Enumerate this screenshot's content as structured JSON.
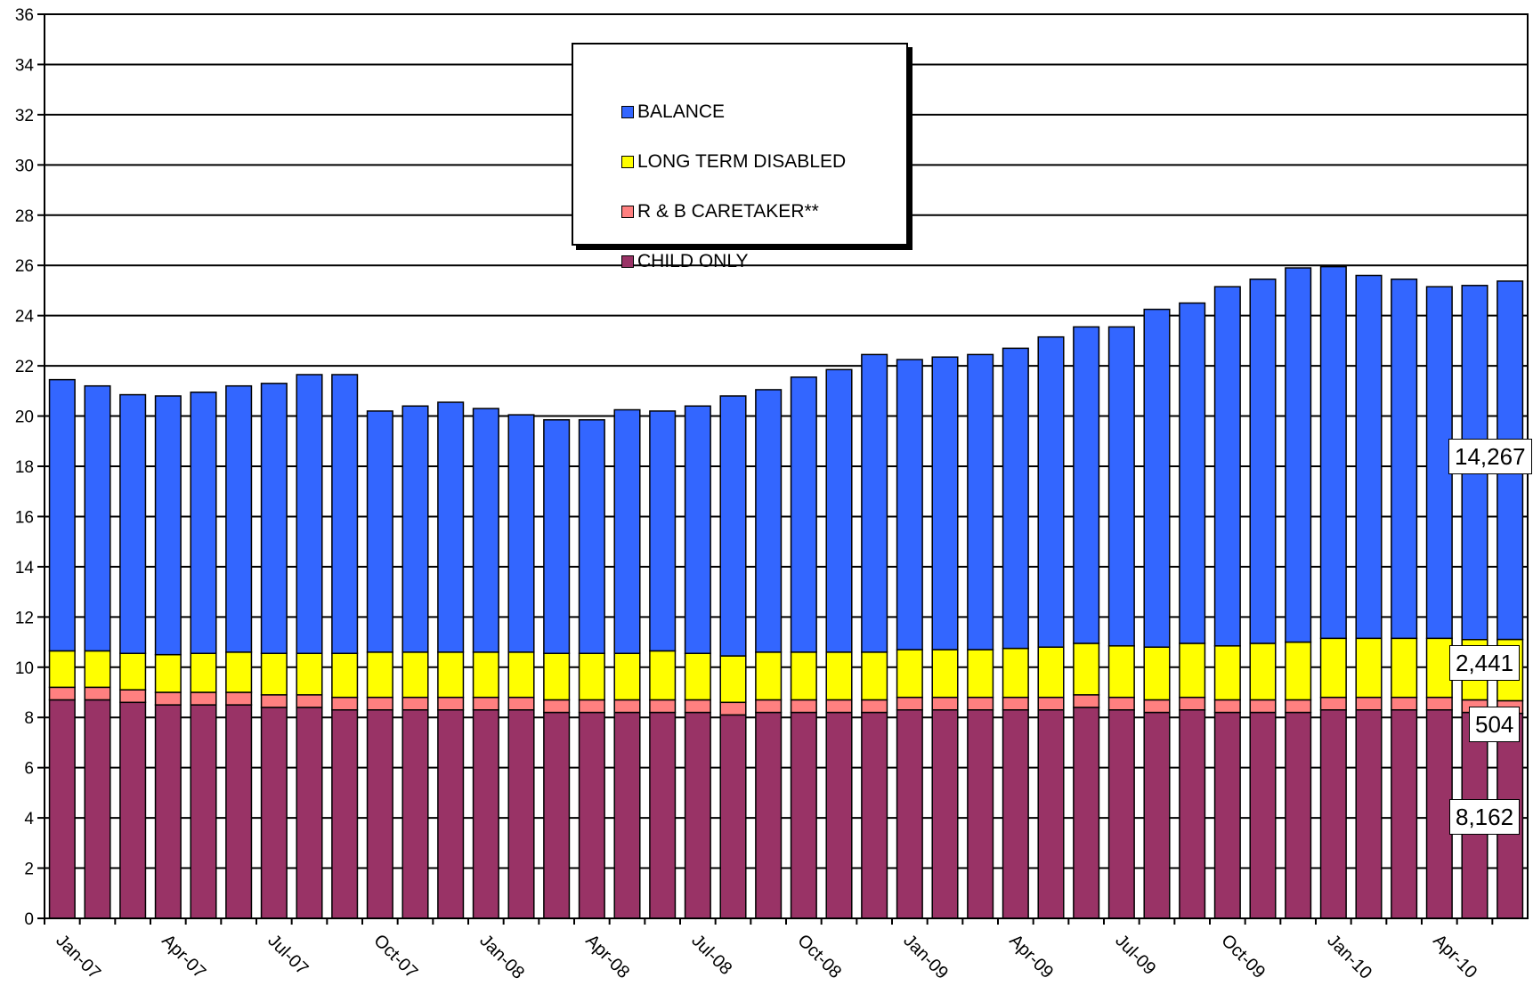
{
  "chart_data": {
    "type": "bar",
    "stacked": true,
    "ylim": [
      0,
      36
    ],
    "yticks": [
      0,
      2,
      4,
      6,
      8,
      10,
      12,
      14,
      16,
      18,
      20,
      22,
      24,
      26,
      28,
      30,
      32,
      34,
      36
    ],
    "grid": true,
    "legend_position": "top-center",
    "categories": [
      "Jan-07",
      "Feb-07",
      "Mar-07",
      "Apr-07",
      "May-07",
      "Jun-07",
      "Jul-07",
      "Aug-07",
      "Sep-07",
      "Oct-07",
      "Nov-07",
      "Dec-07",
      "Jan-08",
      "Feb-08",
      "Mar-08",
      "Apr-08",
      "May-08",
      "Jun-08",
      "Jul-08",
      "Aug-08",
      "Sep-08",
      "Oct-08",
      "Nov-08",
      "Dec-08",
      "Jan-09",
      "Feb-09",
      "Mar-09",
      "Apr-09",
      "May-09",
      "Jun-09",
      "Jul-09",
      "Aug-09",
      "Sep-09",
      "Oct-09",
      "Nov-09",
      "Dec-09",
      "Jan-10",
      "Feb-10",
      "Mar-10",
      "Apr-10",
      "May-10",
      "Jun-10"
    ],
    "xtick_labels": [
      "Jan-07",
      "",
      "",
      "Apr-07",
      "",
      "",
      "Jul-07",
      "",
      "",
      "Oct-07",
      "",
      "",
      "Jan-08",
      "",
      "",
      "Apr-08",
      "",
      "",
      "Jul-08",
      "",
      "",
      "Oct-08",
      "",
      "",
      "Jan-09",
      "",
      "",
      "Apr-09",
      "",
      "",
      "Jul-09",
      "",
      "",
      "Oct-09",
      "",
      "",
      "Jan-10",
      "",
      "",
      "Apr-10",
      "",
      ""
    ],
    "series": [
      {
        "name": "CHILD ONLY",
        "color": "#993366",
        "values": [
          8.7,
          8.7,
          8.6,
          8.5,
          8.5,
          8.5,
          8.4,
          8.4,
          8.3,
          8.3,
          8.3,
          8.3,
          8.3,
          8.3,
          8.2,
          8.2,
          8.2,
          8.2,
          8.2,
          8.1,
          8.2,
          8.2,
          8.2,
          8.2,
          8.3,
          8.3,
          8.3,
          8.3,
          8.3,
          8.4,
          8.3,
          8.2,
          8.3,
          8.2,
          8.2,
          8.2,
          8.3,
          8.3,
          8.3,
          8.3,
          8.2,
          8.162
        ]
      },
      {
        "name": "R & B CARETAKER**",
        "color": "#ff8080",
        "values": [
          0.5,
          0.5,
          0.5,
          0.5,
          0.5,
          0.5,
          0.5,
          0.5,
          0.5,
          0.5,
          0.5,
          0.5,
          0.5,
          0.5,
          0.5,
          0.5,
          0.5,
          0.5,
          0.5,
          0.5,
          0.5,
          0.5,
          0.5,
          0.5,
          0.5,
          0.5,
          0.5,
          0.5,
          0.5,
          0.5,
          0.5,
          0.5,
          0.5,
          0.5,
          0.5,
          0.5,
          0.5,
          0.5,
          0.5,
          0.5,
          0.5,
          0.504
        ]
      },
      {
        "name": "LONG TERM DISABLED",
        "color": "#ffff00",
        "values": [
          1.45,
          1.45,
          1.45,
          1.5,
          1.55,
          1.6,
          1.65,
          1.65,
          1.75,
          1.8,
          1.8,
          1.8,
          1.8,
          1.8,
          1.85,
          1.85,
          1.85,
          1.95,
          1.85,
          1.85,
          1.9,
          1.9,
          1.9,
          1.9,
          1.9,
          1.9,
          1.9,
          1.95,
          2.0,
          2.05,
          2.05,
          2.1,
          2.15,
          2.15,
          2.25,
          2.3,
          2.35,
          2.35,
          2.35,
          2.35,
          2.4,
          2.441
        ]
      },
      {
        "name": "BALANCE",
        "color": "#3366ff",
        "values": [
          10.8,
          10.55,
          10.3,
          10.3,
          10.4,
          10.6,
          10.75,
          11.1,
          11.1,
          9.6,
          9.8,
          9.95,
          9.7,
          9.45,
          9.3,
          9.3,
          9.7,
          9.55,
          9.85,
          10.35,
          10.45,
          10.95,
          11.25,
          11.85,
          11.55,
          11.65,
          11.75,
          11.95,
          12.35,
          12.6,
          12.7,
          13.45,
          13.55,
          14.3,
          14.5,
          14.9,
          14.8,
          14.45,
          14.3,
          14.0,
          14.1,
          14.267
        ]
      }
    ],
    "data_labels": [
      {
        "series": "BALANCE",
        "text": "14,267"
      },
      {
        "series": "LONG TERM DISABLED",
        "text": "2,441"
      },
      {
        "series": "R & B CARETAKER**",
        "text": "504"
      },
      {
        "series": "CHILD ONLY",
        "text": "8,162"
      }
    ]
  },
  "legend": {
    "items": [
      {
        "label": "BALANCE",
        "color": "#3366ff"
      },
      {
        "label": "LONG TERM DISABLED",
        "color": "#ffff00"
      },
      {
        "label": "R & B CARETAKER**",
        "color": "#ff8080"
      },
      {
        "label": "CHILD ONLY",
        "color": "#993366"
      }
    ]
  }
}
